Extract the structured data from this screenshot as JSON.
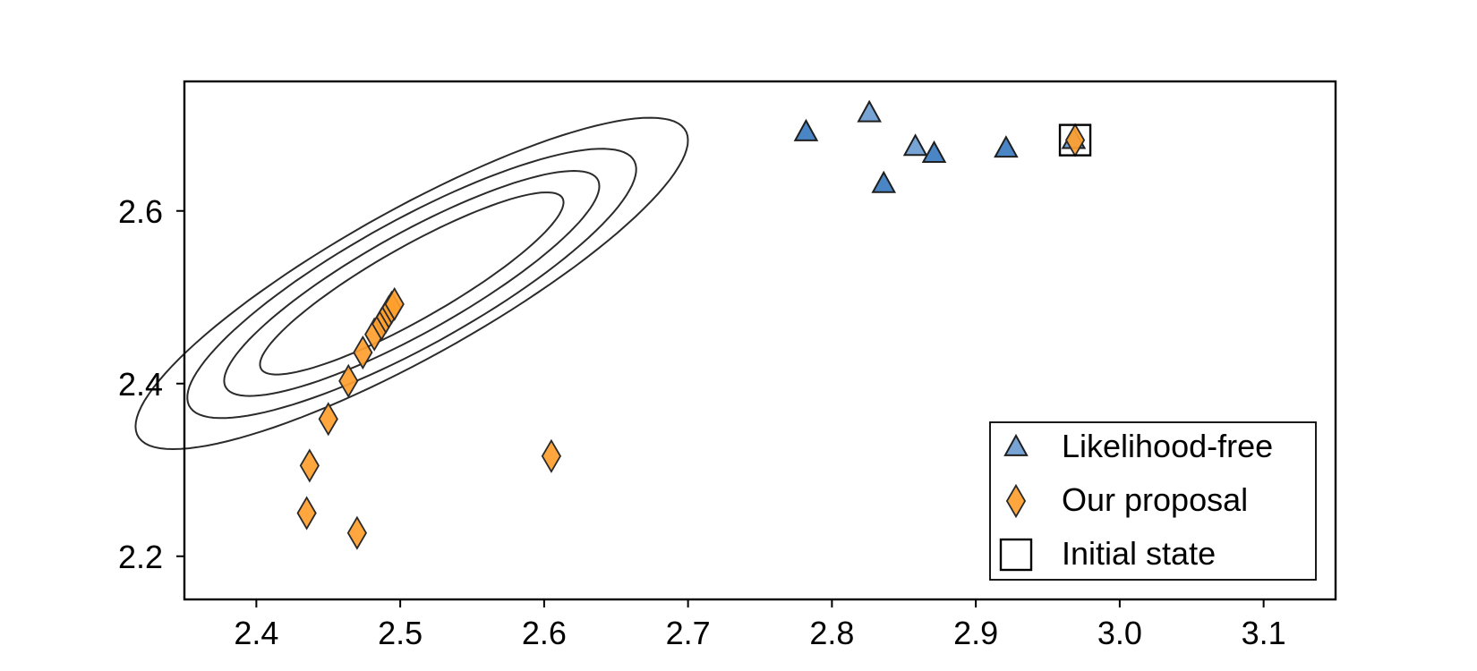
{
  "chart_data": {
    "type": "scatter",
    "title": "",
    "xlabel": "",
    "ylabel": "",
    "xlim": [
      2.35,
      3.15
    ],
    "ylim": [
      2.15,
      2.75
    ],
    "xticks": [
      2.4,
      2.5,
      2.6,
      2.7,
      2.8,
      2.9,
      3.0,
      3.1
    ],
    "xtick_labels": [
      "2.4",
      "2.5",
      "2.6",
      "2.7",
      "2.8",
      "2.9",
      "3.0",
      "3.1"
    ],
    "yticks": [
      2.2,
      2.4,
      2.6
    ],
    "ytick_labels": [
      "2.2",
      "2.4",
      "2.6"
    ],
    "grid": false,
    "legend_position": "bottom-right",
    "series": [
      {
        "name": "Likelihood-free",
        "marker": "triangle",
        "color": "#4a86c5",
        "points": [
          {
            "x": 2.782,
            "y": 2.691,
            "alpha": 1.0
          },
          {
            "x": 2.826,
            "y": 2.713,
            "alpha": 0.75
          },
          {
            "x": 2.836,
            "y": 2.631,
            "alpha": 1.0
          },
          {
            "x": 2.858,
            "y": 2.674,
            "alpha": 0.75
          },
          {
            "x": 2.871,
            "y": 2.666,
            "alpha": 1.0
          },
          {
            "x": 2.921,
            "y": 2.672,
            "alpha": 1.0
          },
          {
            "x": 2.968,
            "y": 2.682,
            "alpha": 0.75
          }
        ]
      },
      {
        "name": "Our proposal",
        "marker": "diamond",
        "color": "#ff9f2e",
        "points": [
          {
            "x": 2.969,
            "y": 2.682
          },
          {
            "x": 2.605,
            "y": 2.316
          },
          {
            "x": 2.47,
            "y": 2.227
          },
          {
            "x": 2.435,
            "y": 2.25
          },
          {
            "x": 2.437,
            "y": 2.305
          },
          {
            "x": 2.45,
            "y": 2.359
          },
          {
            "x": 2.464,
            "y": 2.403
          },
          {
            "x": 2.474,
            "y": 2.436
          },
          {
            "x": 2.482,
            "y": 2.457
          },
          {
            "x": 2.487,
            "y": 2.469
          },
          {
            "x": 2.49,
            "y": 2.477
          },
          {
            "x": 2.492,
            "y": 2.483
          },
          {
            "x": 2.494,
            "y": 2.488
          },
          {
            "x": 2.496,
            "y": 2.492
          }
        ]
      },
      {
        "name": "Initial state",
        "marker": "square",
        "color": "none",
        "points": [
          {
            "x": 2.969,
            "y": 2.682
          }
        ]
      }
    ],
    "contours": {
      "type": "density",
      "center": [
        2.508,
        2.516
      ],
      "levels": [
        {
          "u": 0.035,
          "v": 0.145
        },
        {
          "u": 0.048,
          "v": 0.178
        },
        {
          "u": 0.061,
          "v": 0.212
        },
        {
          "u": 0.071,
          "v": 0.262
        }
      ]
    }
  }
}
